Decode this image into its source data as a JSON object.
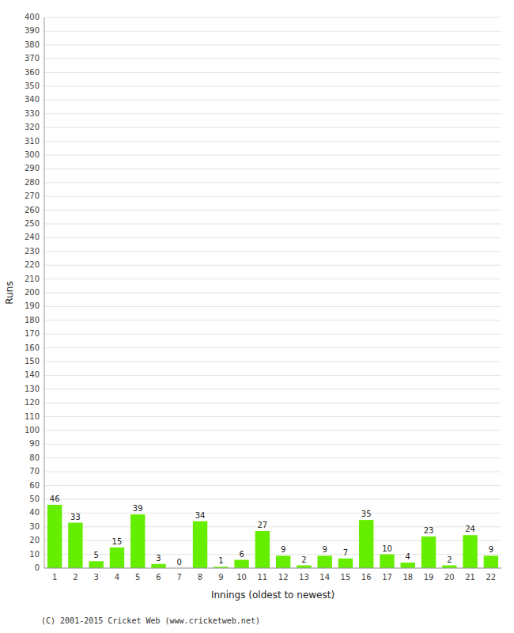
{
  "chart_data": {
    "type": "bar",
    "categories": [
      "1",
      "2",
      "3",
      "4",
      "5",
      "6",
      "7",
      "8",
      "9",
      "10",
      "11",
      "12",
      "13",
      "14",
      "15",
      "16",
      "17",
      "18",
      "19",
      "20",
      "21",
      "22"
    ],
    "values": [
      46,
      33,
      5,
      15,
      39,
      3,
      0,
      34,
      1,
      6,
      27,
      9,
      2,
      9,
      7,
      35,
      10,
      4,
      23,
      2,
      24,
      9
    ],
    "color": "#66ee00",
    "xlabel": "Innings (oldest to newest)",
    "ylabel": "Runs",
    "ylim": [
      0,
      400
    ],
    "yticks": [
      0,
      10,
      20,
      30,
      40,
      50,
      60,
      70,
      80,
      90,
      100,
      110,
      120,
      130,
      140,
      150,
      160,
      170,
      180,
      190,
      200,
      210,
      220,
      230,
      240,
      250,
      260,
      270,
      280,
      290,
      300,
      310,
      320,
      330,
      340,
      350,
      360,
      370,
      380,
      390,
      400
    ],
    "grid": true,
    "data_labels": true,
    "annotations": [
      "(C) 2001-2015 Cricket Web (www.cricketweb.net)"
    ]
  }
}
